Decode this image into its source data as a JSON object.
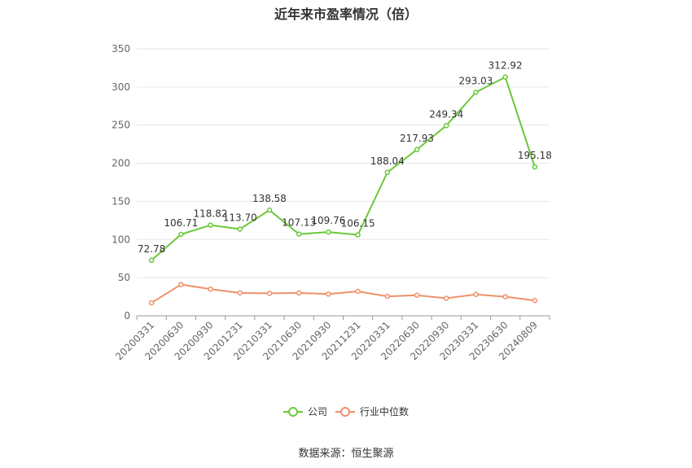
{
  "title": "近年来市盈率情况（倍）",
  "source": "数据来源：恒生聚源",
  "colors": {
    "company": "#6cc83a",
    "industry": "#f0906a",
    "grid": "#e6e6e6",
    "axis": "#999999"
  },
  "chart_data": {
    "type": "line",
    "title": "近年来市盈率情况（倍）",
    "categories": [
      "20200331",
      "20200630",
      "20200930",
      "20201231",
      "20210331",
      "20210630",
      "20210930",
      "20211231",
      "20220331",
      "20220630",
      "20220930",
      "20230331",
      "20230630",
      "20240809"
    ],
    "series": [
      {
        "name": "公司",
        "values": [
          72.78,
          106.71,
          118.82,
          113.7,
          138.58,
          107.13,
          109.76,
          106.15,
          188.04,
          217.93,
          249.34,
          293.03,
          312.92,
          195.18
        ],
        "labels": [
          "72.78",
          "106.71",
          "118.82",
          "113.70",
          "138.58",
          "107.13",
          "109.76",
          "106.15",
          "188.04",
          "217.93",
          "249.34",
          "293.03",
          "312.92",
          "195.18"
        ]
      },
      {
        "name": "行业中位数",
        "values": [
          17,
          41,
          35,
          30,
          29.5,
          30,
          28.5,
          32,
          25.5,
          27,
          23,
          28,
          25,
          20
        ]
      }
    ],
    "ylim": [
      0,
      350
    ],
    "yticks": [
      0,
      50,
      100,
      150,
      200,
      250,
      300,
      350
    ],
    "grid": true,
    "legend_position": "bottom"
  }
}
